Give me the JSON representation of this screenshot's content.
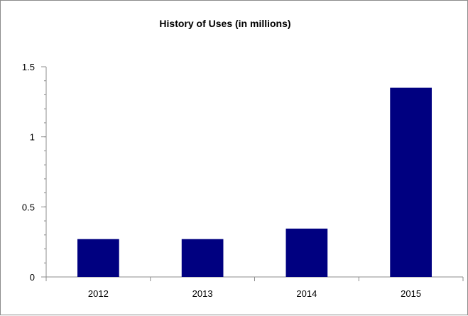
{
  "chart_data": {
    "type": "bar",
    "title": "History of Uses (in millions)",
    "xlabel": "",
    "ylabel": "",
    "categories": [
      "2012",
      "2013",
      "2014",
      "2015"
    ],
    "values": [
      0.27,
      0.27,
      0.345,
      1.35
    ],
    "ylim": [
      0,
      1.5
    ],
    "yticks": [
      0,
      0.5,
      1,
      1.5
    ],
    "ytick_labels": [
      "0",
      "0.5",
      "1",
      "1.5"
    ],
    "y_minor_step": 0.1,
    "grid": false,
    "legend": "none",
    "bar_color": "#000080",
    "axis_color": "#8c8c8c"
  }
}
